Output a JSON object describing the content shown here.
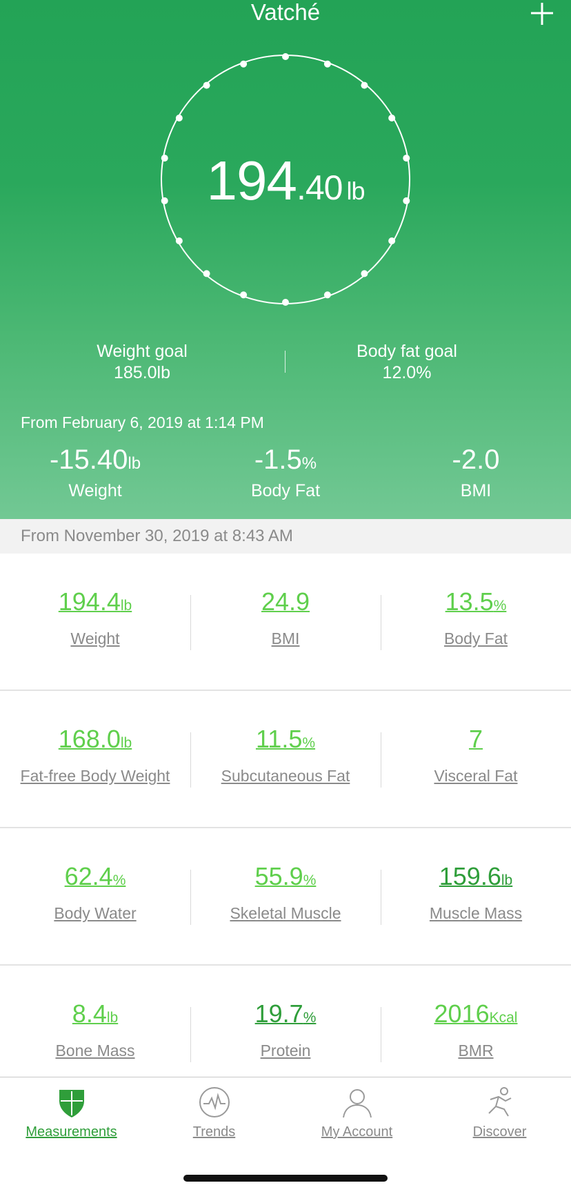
{
  "header": {
    "title": "Vatché"
  },
  "weight": {
    "integer": "194",
    "decimal": ".40",
    "unit": "lb"
  },
  "goals": {
    "weight_label": "Weight goal",
    "weight_value": "185.0lb",
    "bodyfat_label": "Body fat goal",
    "bodyfat_value": "12.0%"
  },
  "change": {
    "since_text": "From February 6, 2019 at 1:14 PM",
    "items": [
      {
        "value": "-15.40",
        "unit": "lb",
        "label": "Weight"
      },
      {
        "value": "-1.5",
        "unit": "%",
        "label": "Body Fat"
      },
      {
        "value": "-2.0",
        "unit": "",
        "label": "BMI"
      }
    ]
  },
  "measurement_date": "From November 30, 2019 at 8:43 AM",
  "metrics": [
    [
      {
        "value": "194.4",
        "unit": "lb",
        "label": "Weight"
      },
      {
        "value": "24.9",
        "unit": "",
        "label": "BMI"
      },
      {
        "value": "13.5",
        "unit": "%",
        "label": "Body Fat"
      }
    ],
    [
      {
        "value": "168.0",
        "unit": "lb",
        "label": "Fat-free Body Weight"
      },
      {
        "value": "11.5",
        "unit": "%",
        "label": "Subcutaneous Fat"
      },
      {
        "value": "7",
        "unit": "",
        "label": "Visceral Fat"
      }
    ],
    [
      {
        "value": "62.4",
        "unit": "%",
        "label": "Body Water"
      },
      {
        "value": "55.9",
        "unit": "%",
        "label": "Skeletal Muscle"
      },
      {
        "value": "159.6",
        "unit": "lb",
        "label": "Muscle Mass"
      }
    ],
    [
      {
        "value": "8.4",
        "unit": "lb",
        "label": "Bone Mass"
      },
      {
        "value": "19.7",
        "unit": "%",
        "label": "Protein"
      },
      {
        "value": "2016",
        "unit": "Kcal",
        "label": "BMR"
      }
    ]
  ],
  "tabs": [
    {
      "label": "Measurements",
      "icon": "shield-icon",
      "active": true
    },
    {
      "label": "Trends",
      "icon": "pulse-icon",
      "active": false
    },
    {
      "label": "My Account",
      "icon": "person-icon",
      "active": false
    },
    {
      "label": "Discover",
      "icon": "runner-icon",
      "active": false
    }
  ],
  "colors": {
    "hero_top": "#23a356",
    "hero_bottom": "#72c894",
    "metric_value": "#5fcf4c",
    "metric_value_dark": "#2f9e3a",
    "label_gray": "#8a8a8a"
  }
}
